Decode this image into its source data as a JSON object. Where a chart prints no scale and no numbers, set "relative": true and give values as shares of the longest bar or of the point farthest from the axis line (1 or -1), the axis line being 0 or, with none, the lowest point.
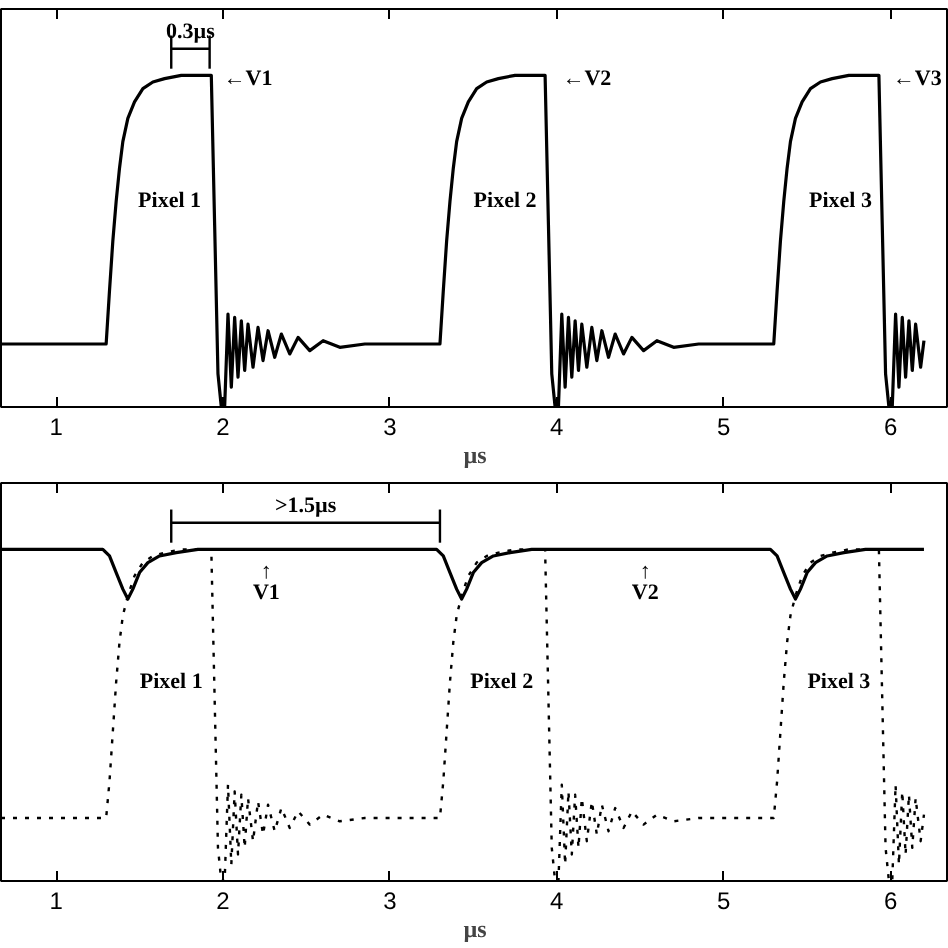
{
  "chart_data": [
    {
      "type": "line",
      "relative": true,
      "xlim": [
        0.67,
        6.35
      ],
      "xticks": [
        1,
        2,
        3,
        4,
        5,
        6
      ],
      "xlabel": "µs",
      "grid": false,
      "series": [
        {
          "color": "#000000",
          "line_style": "solid",
          "x": [
            0.67,
            1.3,
            1.32,
            1.34,
            1.36,
            1.38,
            1.4,
            1.43,
            1.47,
            1.52,
            1.58,
            1.65,
            1.75,
            1.93,
            1.95,
            1.97,
            1.99,
            2.01,
            2.03,
            2.05,
            2.07,
            2.09,
            2.11,
            2.13,
            2.15,
            2.18,
            2.21,
            2.24,
            2.27,
            2.31,
            2.35,
            2.4,
            2.45,
            2.52,
            2.6,
            2.7,
            2.85,
            3.3,
            3.32,
            3.34,
            3.36,
            3.38,
            3.4,
            3.43,
            3.47,
            3.52,
            3.58,
            3.65,
            3.75,
            3.93,
            3.95,
            3.97,
            3.99,
            4.01,
            4.03,
            4.05,
            4.07,
            4.09,
            4.11,
            4.13,
            4.15,
            4.18,
            4.21,
            4.24,
            4.27,
            4.31,
            4.35,
            4.4,
            4.45,
            4.52,
            4.6,
            4.7,
            4.85,
            5.3,
            5.32,
            5.34,
            5.36,
            5.38,
            5.4,
            5.43,
            5.47,
            5.52,
            5.58,
            5.65,
            5.75,
            5.93,
            5.95,
            5.97,
            5.99,
            6.01,
            6.03,
            6.05,
            6.07,
            6.09,
            6.11,
            6.13,
            6.15,
            6.18,
            6.2
          ],
          "values": [
            0.19,
            0.19,
            0.35,
            0.5,
            0.62,
            0.72,
            0.8,
            0.87,
            0.92,
            0.96,
            0.98,
            0.99,
            1.0,
            1.0,
            0.55,
            0.1,
            0.0,
            0.0,
            0.28,
            0.06,
            0.27,
            0.09,
            0.26,
            0.11,
            0.25,
            0.12,
            0.24,
            0.14,
            0.23,
            0.15,
            0.22,
            0.16,
            0.21,
            0.17,
            0.2,
            0.18,
            0.19,
            0.19,
            0.35,
            0.5,
            0.62,
            0.72,
            0.8,
            0.87,
            0.92,
            0.96,
            0.98,
            0.99,
            1.0,
            1.0,
            0.55,
            0.1,
            0.0,
            0.0,
            0.28,
            0.06,
            0.27,
            0.09,
            0.26,
            0.11,
            0.25,
            0.12,
            0.24,
            0.14,
            0.23,
            0.15,
            0.22,
            0.16,
            0.21,
            0.17,
            0.2,
            0.18,
            0.19,
            0.19,
            0.35,
            0.5,
            0.62,
            0.72,
            0.8,
            0.87,
            0.92,
            0.96,
            0.98,
            0.99,
            1.0,
            1.0,
            0.55,
            0.1,
            0.0,
            0.0,
            0.28,
            0.06,
            0.27,
            0.09,
            0.26,
            0.11,
            0.25,
            0.12,
            0.2
          ]
        }
      ],
      "annotations": [
        "0.3µs",
        "←V1",
        "←V2",
        "←V3",
        "Pixel 1",
        "Pixel 2",
        "Pixel 3"
      ]
    },
    {
      "type": "line",
      "relative": true,
      "xlim": [
        0.67,
        6.35
      ],
      "xticks": [
        1,
        2,
        3,
        4,
        5,
        6
      ],
      "xlabel": "µs",
      "grid": false,
      "series": [
        {
          "color": "#000000",
          "line_style": "dotted",
          "x": [
            0.67,
            1.3,
            1.32,
            1.34,
            1.36,
            1.38,
            1.4,
            1.43,
            1.47,
            1.52,
            1.58,
            1.65,
            1.75,
            1.93,
            1.95,
            1.97,
            1.99,
            2.01,
            2.03,
            2.05,
            2.07,
            2.09,
            2.11,
            2.13,
            2.15,
            2.18,
            2.21,
            2.24,
            2.27,
            2.31,
            2.35,
            2.4,
            2.45,
            2.52,
            2.6,
            2.7,
            2.85,
            3.3,
            3.32,
            3.34,
            3.36,
            3.38,
            3.4,
            3.43,
            3.47,
            3.52,
            3.58,
            3.65,
            3.75,
            3.93,
            3.95,
            3.97,
            3.99,
            4.01,
            4.03,
            4.05,
            4.07,
            4.09,
            4.11,
            4.13,
            4.15,
            4.18,
            4.21,
            4.24,
            4.27,
            4.31,
            4.35,
            4.4,
            4.45,
            4.52,
            4.6,
            4.7,
            4.85,
            5.3,
            5.32,
            5.34,
            5.36,
            5.38,
            5.4,
            5.43,
            5.47,
            5.52,
            5.58,
            5.65,
            5.75,
            5.93,
            5.95,
            5.97,
            5.99,
            6.01,
            6.03,
            6.05,
            6.07,
            6.09,
            6.11,
            6.13,
            6.15,
            6.18,
            6.2
          ],
          "values": [
            0.19,
            0.19,
            0.3,
            0.45,
            0.6,
            0.72,
            0.8,
            0.86,
            0.92,
            0.96,
            0.98,
            0.99,
            1.0,
            1.0,
            0.55,
            0.1,
            0.0,
            0.0,
            0.29,
            0.05,
            0.27,
            0.08,
            0.26,
            0.1,
            0.25,
            0.12,
            0.24,
            0.14,
            0.23,
            0.15,
            0.22,
            0.16,
            0.21,
            0.17,
            0.2,
            0.18,
            0.19,
            0.19,
            0.3,
            0.45,
            0.6,
            0.72,
            0.8,
            0.86,
            0.92,
            0.96,
            0.98,
            0.99,
            1.0,
            1.0,
            0.55,
            0.1,
            0.0,
            0.0,
            0.29,
            0.05,
            0.27,
            0.08,
            0.26,
            0.1,
            0.25,
            0.12,
            0.24,
            0.14,
            0.23,
            0.15,
            0.22,
            0.16,
            0.21,
            0.17,
            0.2,
            0.18,
            0.19,
            0.19,
            0.3,
            0.45,
            0.6,
            0.72,
            0.8,
            0.86,
            0.92,
            0.96,
            0.98,
            0.99,
            1.0,
            1.0,
            0.55,
            0.1,
            0.0,
            0.0,
            0.29,
            0.05,
            0.27,
            0.08,
            0.26,
            0.1,
            0.25,
            0.12,
            0.2
          ]
        },
        {
          "color": "#000000",
          "line_style": "solid",
          "x": [
            0.67,
            1.28,
            1.32,
            1.36,
            1.4,
            1.43,
            1.46,
            1.5,
            1.55,
            1.62,
            1.72,
            1.85,
            3.28,
            3.32,
            3.36,
            3.4,
            3.43,
            3.46,
            3.5,
            3.55,
            3.62,
            3.72,
            3.85,
            5.28,
            5.32,
            5.36,
            5.4,
            5.43,
            5.46,
            5.5,
            5.55,
            5.62,
            5.72,
            5.85,
            6.2
          ],
          "values": [
            1.0,
            1.0,
            0.98,
            0.93,
            0.88,
            0.85,
            0.88,
            0.93,
            0.96,
            0.98,
            0.99,
            1.0,
            1.0,
            0.98,
            0.93,
            0.88,
            0.85,
            0.88,
            0.93,
            0.96,
            0.98,
            0.99,
            1.0,
            1.0,
            0.98,
            0.93,
            0.88,
            0.85,
            0.88,
            0.93,
            0.96,
            0.98,
            0.99,
            1.0,
            1.0
          ]
        }
      ],
      "annotations": [
        ">1.5µs",
        "↑\nV1",
        "↑\nV2",
        "Pixel 1",
        "Pixel 2",
        "Pixel 3"
      ]
    }
  ]
}
